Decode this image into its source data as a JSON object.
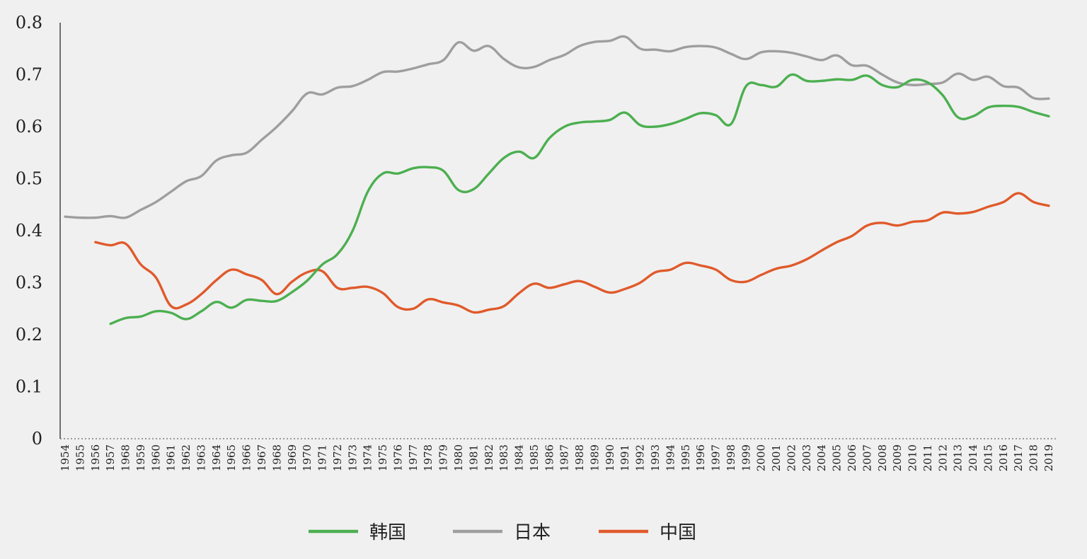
{
  "chart_data": {
    "type": "line",
    "ylim": [
      0,
      0.8
    ],
    "yticks": [
      "0",
      "0.1",
      "0.2",
      "0.3",
      "0.4",
      "0.5",
      "0.6",
      "0.7",
      "0.8"
    ],
    "categories": [
      "1954",
      "1955",
      "1956",
      "1957",
      "1968",
      "1959",
      "1960",
      "1961",
      "1962",
      "1963",
      "1964",
      "1965",
      "1966",
      "1967",
      "1968",
      "1969",
      "1970",
      "1971",
      "1972",
      "1973",
      "1974",
      "1975",
      "1976",
      "1977",
      "1978",
      "1979",
      "1980",
      "1981",
      "1982",
      "1983",
      "1984",
      "1985",
      "1986",
      "1987",
      "1988",
      "1989",
      "1990",
      "1991",
      "1992",
      "1993",
      "1994",
      "1995",
      "1996",
      "1997",
      "1998",
      "1999",
      "2000",
      "2001",
      "2002",
      "2003",
      "2004",
      "2005",
      "2006",
      "2007",
      "2008",
      "2009",
      "2010",
      "2011",
      "2012",
      "2013",
      "2014",
      "2015",
      "2016",
      "2017",
      "2018",
      "2019"
    ],
    "legend_position": "bottom",
    "grid": false,
    "series": [
      {
        "name": "韩国",
        "color": "#4caf50",
        "values": [
          null,
          null,
          null,
          0.221,
          0.232,
          0.235,
          0.245,
          0.242,
          0.23,
          0.245,
          0.263,
          0.252,
          0.267,
          0.265,
          0.265,
          0.282,
          0.304,
          0.335,
          0.355,
          0.4,
          0.475,
          0.51,
          0.51,
          0.52,
          0.522,
          0.515,
          0.478,
          0.48,
          0.51,
          0.54,
          0.552,
          0.54,
          0.578,
          0.6,
          0.608,
          0.61,
          0.613,
          0.627,
          0.603,
          0.6,
          0.605,
          0.615,
          0.626,
          0.622,
          0.605,
          0.678,
          0.68,
          0.677,
          0.7,
          0.688,
          0.688,
          0.691,
          0.69,
          0.698,
          0.68,
          0.676,
          0.69,
          0.685,
          0.66,
          0.618,
          0.62,
          0.637,
          0.64,
          0.638,
          0.628,
          0.62
        ]
      },
      {
        "name": "日本",
        "color": "#9e9e9e",
        "values": [
          0.427,
          0.425,
          0.425,
          0.428,
          0.425,
          0.44,
          0.455,
          0.475,
          0.495,
          0.505,
          0.535,
          0.545,
          0.55,
          0.575,
          0.6,
          0.63,
          0.664,
          0.662,
          0.675,
          0.678,
          0.69,
          0.705,
          0.706,
          0.712,
          0.72,
          0.728,
          0.762,
          0.746,
          0.755,
          0.73,
          0.714,
          0.715,
          0.728,
          0.738,
          0.755,
          0.763,
          0.765,
          0.773,
          0.75,
          0.748,
          0.745,
          0.753,
          0.755,
          0.752,
          0.74,
          0.73,
          0.743,
          0.745,
          0.742,
          0.735,
          0.728,
          0.737,
          0.718,
          0.717,
          0.7,
          0.685,
          0.68,
          0.682,
          0.685,
          0.702,
          0.69,
          0.696,
          0.678,
          0.675,
          0.655,
          0.654
        ]
      },
      {
        "name": "中国",
        "color": "#e05a2b",
        "values": [
          null,
          null,
          0.378,
          0.372,
          0.375,
          0.335,
          0.31,
          0.255,
          0.258,
          0.278,
          0.305,
          0.325,
          0.316,
          0.305,
          0.278,
          0.302,
          0.32,
          0.322,
          0.29,
          0.29,
          0.292,
          0.28,
          0.253,
          0.25,
          0.268,
          0.262,
          0.256,
          0.243,
          0.248,
          0.255,
          0.28,
          0.298,
          0.29,
          0.297,
          0.303,
          0.292,
          0.281,
          0.288,
          0.3,
          0.32,
          0.325,
          0.338,
          0.333,
          0.325,
          0.305,
          0.302,
          0.315,
          0.327,
          0.333,
          0.345,
          0.362,
          0.378,
          0.39,
          0.41,
          0.415,
          0.41,
          0.417,
          0.42,
          0.435,
          0.433,
          0.436,
          0.446,
          0.455,
          0.472,
          0.455,
          0.448
        ]
      }
    ]
  }
}
